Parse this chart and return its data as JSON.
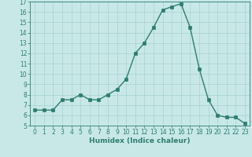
{
  "x": [
    0,
    1,
    2,
    3,
    4,
    5,
    6,
    7,
    8,
    9,
    10,
    11,
    12,
    13,
    14,
    15,
    16,
    17,
    18,
    19,
    20,
    21,
    22,
    23
  ],
  "y": [
    6.5,
    6.5,
    6.5,
    7.5,
    7.5,
    8.0,
    7.5,
    7.5,
    8.0,
    8.5,
    9.5,
    12.0,
    13.0,
    14.5,
    16.2,
    16.5,
    16.8,
    14.5,
    10.5,
    7.5,
    6.0,
    5.8,
    5.8,
    5.2
  ],
  "xlabel": "Humidex (Indice chaleur)",
  "ylim": [
    5,
    17
  ],
  "xlim": [
    -0.5,
    23.5
  ],
  "yticks": [
    5,
    6,
    7,
    8,
    9,
    10,
    11,
    12,
    13,
    14,
    15,
    16,
    17
  ],
  "xticks": [
    0,
    1,
    2,
    3,
    4,
    5,
    6,
    7,
    8,
    9,
    10,
    11,
    12,
    13,
    14,
    15,
    16,
    17,
    18,
    19,
    20,
    21,
    22,
    23
  ],
  "line_color": "#2e7d6e",
  "bg_color": "#c8e8e8",
  "grid_color": "#a8d0d0",
  "marker": "s",
  "markersize": 2.5,
  "linewidth": 1.0
}
